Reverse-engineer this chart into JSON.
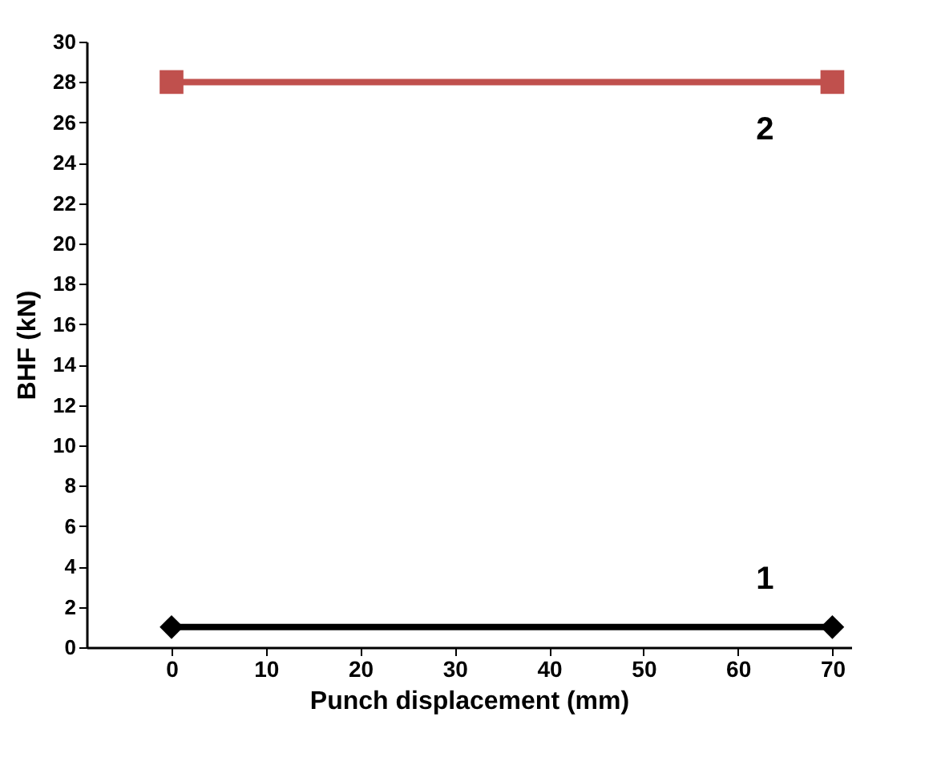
{
  "chart_data": {
    "type": "line",
    "xlabel": "Punch displacement (mm)",
    "ylabel": "BHF (kN)",
    "x": [
      0,
      70
    ],
    "series": [
      {
        "name": "1",
        "color": "#000000",
        "values": [
          1,
          1
        ],
        "marker": "diamond"
      },
      {
        "name": "2",
        "color": "#c0504d",
        "values": [
          28,
          28
        ],
        "marker": "square"
      }
    ],
    "xlim": [
      -9,
      72
    ],
    "xticks": [
      0,
      10,
      20,
      30,
      40,
      50,
      60,
      70
    ],
    "ylim": [
      0,
      30
    ],
    "yticks": [
      0,
      2,
      4,
      6,
      8,
      10,
      12,
      14,
      16,
      18,
      20,
      22,
      24,
      26,
      28,
      30
    ],
    "grid": false,
    "legend": false,
    "line_style": "solid"
  }
}
